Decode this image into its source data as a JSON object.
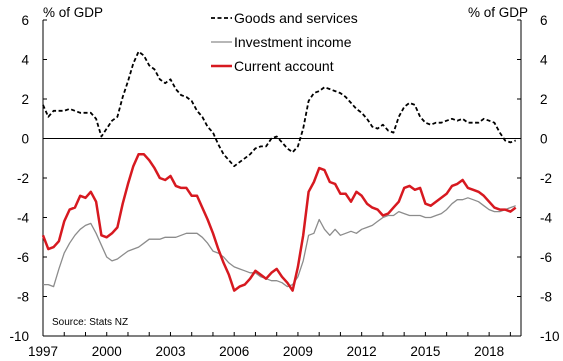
{
  "chart_data": {
    "type": "line",
    "ylabel_left": "% of GDP",
    "ylabel_right": "% of GDP",
    "ylim": [
      -10,
      6
    ],
    "yticks": [
      -10,
      -8,
      -6,
      -4,
      -2,
      0,
      2,
      4,
      6
    ],
    "xlim": [
      1997,
      2019.5
    ],
    "xticks": [
      1997,
      2000,
      2003,
      2006,
      2009,
      2012,
      2015,
      2018
    ],
    "source": "Source: Stats NZ",
    "legend_position": "top-center",
    "series": [
      {
        "name": "Goods and services",
        "color": "#000000",
        "style": "dashed",
        "points": [
          [
            1997.0,
            1.7
          ],
          [
            1997.25,
            1.1
          ],
          [
            1997.5,
            1.4
          ],
          [
            1997.75,
            1.4
          ],
          [
            1998.0,
            1.4
          ],
          [
            1998.25,
            1.5
          ],
          [
            1998.5,
            1.4
          ],
          [
            1998.75,
            1.3
          ],
          [
            1999.0,
            1.3
          ],
          [
            1999.25,
            1.3
          ],
          [
            1999.5,
            1.0
          ],
          [
            1999.75,
            0.1
          ],
          [
            2000.0,
            0.5
          ],
          [
            2000.25,
            0.9
          ],
          [
            2000.5,
            1.1
          ],
          [
            2000.75,
            2.1
          ],
          [
            2001.0,
            2.9
          ],
          [
            2001.25,
            3.8
          ],
          [
            2001.5,
            4.4
          ],
          [
            2001.75,
            4.2
          ],
          [
            2002.0,
            3.7
          ],
          [
            2002.25,
            3.5
          ],
          [
            2002.5,
            3.0
          ],
          [
            2002.75,
            2.8
          ],
          [
            2003.0,
            3.0
          ],
          [
            2003.25,
            2.5
          ],
          [
            2003.5,
            2.2
          ],
          [
            2003.75,
            2.1
          ],
          [
            2004.0,
            1.9
          ],
          [
            2004.25,
            1.4
          ],
          [
            2004.5,
            1.1
          ],
          [
            2004.75,
            0.6
          ],
          [
            2005.0,
            0.3
          ],
          [
            2005.25,
            -0.3
          ],
          [
            2005.5,
            -0.8
          ],
          [
            2005.75,
            -1.1
          ],
          [
            2006.0,
            -1.4
          ],
          [
            2006.25,
            -1.2
          ],
          [
            2006.5,
            -1.0
          ],
          [
            2006.75,
            -0.8
          ],
          [
            2007.0,
            -0.5
          ],
          [
            2007.25,
            -0.4
          ],
          [
            2007.5,
            -0.4
          ],
          [
            2007.75,
            0.0
          ],
          [
            2008.0,
            0.1
          ],
          [
            2008.25,
            -0.2
          ],
          [
            2008.5,
            -0.5
          ],
          [
            2008.75,
            -0.7
          ],
          [
            2009.0,
            -0.4
          ],
          [
            2009.25,
            0.5
          ],
          [
            2009.5,
            1.9
          ],
          [
            2009.75,
            2.3
          ],
          [
            2010.0,
            2.4
          ],
          [
            2010.25,
            2.6
          ],
          [
            2010.5,
            2.5
          ],
          [
            2010.75,
            2.4
          ],
          [
            2011.0,
            2.3
          ],
          [
            2011.25,
            2.1
          ],
          [
            2011.5,
            1.8
          ],
          [
            2011.75,
            1.5
          ],
          [
            2012.0,
            1.3
          ],
          [
            2012.25,
            1.0
          ],
          [
            2012.5,
            0.6
          ],
          [
            2012.75,
            0.5
          ],
          [
            2013.0,
            0.7
          ],
          [
            2013.25,
            0.4
          ],
          [
            2013.5,
            0.3
          ],
          [
            2013.75,
            1.1
          ],
          [
            2014.0,
            1.6
          ],
          [
            2014.25,
            1.8
          ],
          [
            2014.5,
            1.7
          ],
          [
            2014.75,
            1.1
          ],
          [
            2015.0,
            0.8
          ],
          [
            2015.25,
            0.7
          ],
          [
            2015.5,
            0.8
          ],
          [
            2015.75,
            0.8
          ],
          [
            2016.0,
            0.9
          ],
          [
            2016.25,
            1.0
          ],
          [
            2016.5,
            0.9
          ],
          [
            2016.75,
            1.0
          ],
          [
            2017.0,
            0.8
          ],
          [
            2017.25,
            0.8
          ],
          [
            2017.5,
            0.8
          ],
          [
            2017.75,
            1.0
          ],
          [
            2018.0,
            0.9
          ],
          [
            2018.25,
            0.8
          ],
          [
            2018.5,
            0.3
          ],
          [
            2018.75,
            -0.1
          ],
          [
            2019.0,
            -0.2
          ],
          [
            2019.25,
            -0.1
          ]
        ]
      },
      {
        "name": "Investment income",
        "color": "#8c8c8c",
        "style": "solid",
        "points": [
          [
            1997.0,
            -7.4
          ],
          [
            1997.25,
            -7.4
          ],
          [
            1997.5,
            -7.5
          ],
          [
            1997.75,
            -6.6
          ],
          [
            1998.0,
            -5.8
          ],
          [
            1998.25,
            -5.3
          ],
          [
            1998.5,
            -4.9
          ],
          [
            1998.75,
            -4.6
          ],
          [
            1999.0,
            -4.4
          ],
          [
            1999.25,
            -4.3
          ],
          [
            1999.5,
            -4.8
          ],
          [
            1999.75,
            -5.4
          ],
          [
            2000.0,
            -6.0
          ],
          [
            2000.25,
            -6.2
          ],
          [
            2000.5,
            -6.1
          ],
          [
            2000.75,
            -5.9
          ],
          [
            2001.0,
            -5.7
          ],
          [
            2001.25,
            -5.6
          ],
          [
            2001.5,
            -5.5
          ],
          [
            2001.75,
            -5.3
          ],
          [
            2002.0,
            -5.1
          ],
          [
            2002.25,
            -5.1
          ],
          [
            2002.5,
            -5.1
          ],
          [
            2002.75,
            -5.0
          ],
          [
            2003.0,
            -5.0
          ],
          [
            2003.25,
            -5.0
          ],
          [
            2003.5,
            -4.9
          ],
          [
            2003.75,
            -4.8
          ],
          [
            2004.0,
            -4.8
          ],
          [
            2004.25,
            -4.8
          ],
          [
            2004.5,
            -5.0
          ],
          [
            2004.75,
            -5.3
          ],
          [
            2005.0,
            -5.7
          ],
          [
            2005.25,
            -5.8
          ],
          [
            2005.5,
            -6.0
          ],
          [
            2005.75,
            -6.3
          ],
          [
            2006.0,
            -6.5
          ],
          [
            2006.25,
            -6.6
          ],
          [
            2006.5,
            -6.7
          ],
          [
            2006.75,
            -6.8
          ],
          [
            2007.0,
            -6.8
          ],
          [
            2007.25,
            -7.0
          ],
          [
            2007.5,
            -7.1
          ],
          [
            2007.75,
            -7.2
          ],
          [
            2008.0,
            -7.2
          ],
          [
            2008.25,
            -7.3
          ],
          [
            2008.5,
            -7.5
          ],
          [
            2008.75,
            -7.4
          ],
          [
            2009.0,
            -7.0
          ],
          [
            2009.25,
            -6.2
          ],
          [
            2009.5,
            -4.9
          ],
          [
            2009.75,
            -4.8
          ],
          [
            2010.0,
            -4.1
          ],
          [
            2010.25,
            -4.6
          ],
          [
            2010.5,
            -4.9
          ],
          [
            2010.75,
            -4.6
          ],
          [
            2011.0,
            -4.9
          ],
          [
            2011.25,
            -4.8
          ],
          [
            2011.5,
            -4.7
          ],
          [
            2011.75,
            -4.8
          ],
          [
            2012.0,
            -4.6
          ],
          [
            2012.25,
            -4.5
          ],
          [
            2012.5,
            -4.4
          ],
          [
            2012.75,
            -4.2
          ],
          [
            2013.0,
            -4.0
          ],
          [
            2013.25,
            -3.9
          ],
          [
            2013.5,
            -3.9
          ],
          [
            2013.75,
            -3.7
          ],
          [
            2014.0,
            -3.8
          ],
          [
            2014.25,
            -3.9
          ],
          [
            2014.5,
            -3.9
          ],
          [
            2014.75,
            -3.9
          ],
          [
            2015.0,
            -4.0
          ],
          [
            2015.25,
            -4.0
          ],
          [
            2015.5,
            -3.9
          ],
          [
            2015.75,
            -3.8
          ],
          [
            2016.0,
            -3.6
          ],
          [
            2016.25,
            -3.3
          ],
          [
            2016.5,
            -3.1
          ],
          [
            2016.75,
            -3.1
          ],
          [
            2017.0,
            -3.0
          ],
          [
            2017.25,
            -3.1
          ],
          [
            2017.5,
            -3.2
          ],
          [
            2017.75,
            -3.4
          ],
          [
            2018.0,
            -3.6
          ],
          [
            2018.25,
            -3.7
          ],
          [
            2018.5,
            -3.7
          ],
          [
            2018.75,
            -3.6
          ],
          [
            2019.0,
            -3.5
          ],
          [
            2019.25,
            -3.4
          ]
        ]
      },
      {
        "name": "Current account",
        "color": "#d71920",
        "style": "solid",
        "points": [
          [
            1997.0,
            -4.9
          ],
          [
            1997.25,
            -5.6
          ],
          [
            1997.5,
            -5.5
          ],
          [
            1997.75,
            -5.2
          ],
          [
            1998.0,
            -4.2
          ],
          [
            1998.25,
            -3.6
          ],
          [
            1998.5,
            -3.5
          ],
          [
            1998.75,
            -2.9
          ],
          [
            1999.0,
            -3.0
          ],
          [
            1999.25,
            -2.7
          ],
          [
            1999.5,
            -3.2
          ],
          [
            1999.75,
            -4.9
          ],
          [
            2000.0,
            -5.0
          ],
          [
            2000.25,
            -4.8
          ],
          [
            2000.5,
            -4.5
          ],
          [
            2000.75,
            -3.3
          ],
          [
            2001.0,
            -2.3
          ],
          [
            2001.25,
            -1.4
          ],
          [
            2001.5,
            -0.8
          ],
          [
            2001.75,
            -0.8
          ],
          [
            2002.0,
            -1.1
          ],
          [
            2002.25,
            -1.5
          ],
          [
            2002.5,
            -2.0
          ],
          [
            2002.75,
            -2.1
          ],
          [
            2003.0,
            -1.9
          ],
          [
            2003.25,
            -2.4
          ],
          [
            2003.5,
            -2.5
          ],
          [
            2003.75,
            -2.5
          ],
          [
            2004.0,
            -2.9
          ],
          [
            2004.25,
            -2.9
          ],
          [
            2004.5,
            -3.5
          ],
          [
            2004.75,
            -4.1
          ],
          [
            2005.0,
            -4.8
          ],
          [
            2005.25,
            -5.6
          ],
          [
            2005.5,
            -6.3
          ],
          [
            2005.75,
            -6.9
          ],
          [
            2006.0,
            -7.7
          ],
          [
            2006.25,
            -7.5
          ],
          [
            2006.5,
            -7.4
          ],
          [
            2006.75,
            -7.1
          ],
          [
            2007.0,
            -6.7
          ],
          [
            2007.25,
            -6.9
          ],
          [
            2007.5,
            -7.1
          ],
          [
            2007.75,
            -6.8
          ],
          [
            2008.0,
            -6.6
          ],
          [
            2008.25,
            -7.0
          ],
          [
            2008.5,
            -7.3
          ],
          [
            2008.75,
            -7.7
          ],
          [
            2009.0,
            -6.5
          ],
          [
            2009.25,
            -4.9
          ],
          [
            2009.5,
            -2.7
          ],
          [
            2009.75,
            -2.2
          ],
          [
            2010.0,
            -1.5
          ],
          [
            2010.25,
            -1.6
          ],
          [
            2010.5,
            -2.2
          ],
          [
            2010.75,
            -2.3
          ],
          [
            2011.0,
            -2.8
          ],
          [
            2011.25,
            -2.8
          ],
          [
            2011.5,
            -3.2
          ],
          [
            2011.75,
            -2.7
          ],
          [
            2012.0,
            -2.9
          ],
          [
            2012.25,
            -3.3
          ],
          [
            2012.5,
            -3.5
          ],
          [
            2012.75,
            -3.6
          ],
          [
            2013.0,
            -3.9
          ],
          [
            2013.25,
            -3.8
          ],
          [
            2013.5,
            -3.5
          ],
          [
            2013.75,
            -3.2
          ],
          [
            2014.0,
            -2.5
          ],
          [
            2014.25,
            -2.4
          ],
          [
            2014.5,
            -2.6
          ],
          [
            2014.75,
            -2.5
          ],
          [
            2015.0,
            -3.3
          ],
          [
            2015.25,
            -3.4
          ],
          [
            2015.5,
            -3.2
          ],
          [
            2015.75,
            -3.0
          ],
          [
            2016.0,
            -2.8
          ],
          [
            2016.25,
            -2.4
          ],
          [
            2016.5,
            -2.3
          ],
          [
            2016.75,
            -2.1
          ],
          [
            2017.0,
            -2.5
          ],
          [
            2017.25,
            -2.6
          ],
          [
            2017.5,
            -2.7
          ],
          [
            2017.75,
            -2.9
          ],
          [
            2018.0,
            -3.2
          ],
          [
            2018.25,
            -3.5
          ],
          [
            2018.5,
            -3.6
          ],
          [
            2018.75,
            -3.6
          ],
          [
            2019.0,
            -3.7
          ],
          [
            2019.25,
            -3.5
          ]
        ]
      }
    ]
  }
}
